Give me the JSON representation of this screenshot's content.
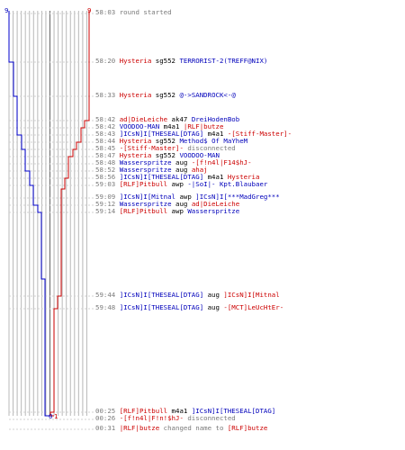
{
  "team_colors": {
    "red": "#cc0000",
    "blue": "#0000cc",
    "grid": "#b8b8b8",
    "axis": "#000000"
  },
  "top_labels": {
    "blue_count": "9",
    "red_count": "9"
  },
  "bottom_labels": {
    "blue_count": "0",
    "red_count": "1"
  },
  "events": [
    {
      "time": "58:03",
      "parts": [
        {
          "text": "round started",
          "c": "sys"
        }
      ]
    },
    {
      "time": "58:20",
      "parts": [
        {
          "text": "Hysteria",
          "c": "red"
        },
        {
          "text": " sg552 ",
          "c": "k"
        },
        {
          "text": "TERRORIST-2(TREFF@NIX)",
          "c": "blue"
        }
      ]
    },
    {
      "time": "58:33",
      "parts": [
        {
          "text": "Hysteria",
          "c": "red"
        },
        {
          "text": " sg552 ",
          "c": "k"
        },
        {
          "text": "@->SANDROCK<-@",
          "c": "blue"
        }
      ]
    },
    {
      "time": "58:42",
      "parts": [
        {
          "text": "ad|DieLeiche",
          "c": "red"
        },
        {
          "text": " ak47 ",
          "c": "k"
        },
        {
          "text": "DreiHodenBob",
          "c": "blue"
        }
      ]
    },
    {
      "time": "58:42",
      "parts": [
        {
          "text": "VOODOO-MAN",
          "c": "blue"
        },
        {
          "text": " m4a1 ",
          "c": "k"
        },
        {
          "text": "|RLF|butze",
          "c": "red"
        }
      ]
    },
    {
      "time": "58:43",
      "parts": [
        {
          "text": "]ICsN]I[THESEAL[DTAG]",
          "c": "blue"
        },
        {
          "text": " m4a1 ",
          "c": "k"
        },
        {
          "text": "-[Stiff-Master]-",
          "c": "red"
        }
      ]
    },
    {
      "time": "58:44",
      "parts": [
        {
          "text": "Hysteria",
          "c": "red"
        },
        {
          "text": " sg552 ",
          "c": "k"
        },
        {
          "text": "Method$ Of MaYheM",
          "c": "blue"
        }
      ]
    },
    {
      "time": "58:45",
      "parts": [
        {
          "text": "-[Stiff-Master]-",
          "c": "red"
        },
        {
          "text": " disconnected",
          "c": "sys"
        }
      ]
    },
    {
      "time": "58:47",
      "parts": [
        {
          "text": "Hysteria",
          "c": "red"
        },
        {
          "text": " sg552 ",
          "c": "k"
        },
        {
          "text": "VOODOO-MAN",
          "c": "blue"
        }
      ]
    },
    {
      "time": "58:48",
      "parts": [
        {
          "text": "Wasserspritze",
          "c": "blue"
        },
        {
          "text": " aug ",
          "c": "k"
        },
        {
          "text": "-[f!n4l|F14$hJ-",
          "c": "red"
        }
      ]
    },
    {
      "time": "58:52",
      "parts": [
        {
          "text": "Wasserspritze",
          "c": "blue"
        },
        {
          "text": " aug ",
          "c": "k"
        },
        {
          "text": "ahaj",
          "c": "red"
        }
      ]
    },
    {
      "time": "58:56",
      "parts": [
        {
          "text": "]ICsN]I[THESEAL[DTAG]",
          "c": "blue"
        },
        {
          "text": " m4a1 ",
          "c": "k"
        },
        {
          "text": "Hysteria",
          "c": "red"
        }
      ]
    },
    {
      "time": "59:03",
      "parts": [
        {
          "text": "[RLF]Pitbull",
          "c": "red"
        },
        {
          "text": " awp ",
          "c": "k"
        },
        {
          "text": "-|SoI|- Kpt.Blaubaer",
          "c": "blue"
        }
      ]
    },
    {
      "time": "59:09",
      "parts": [
        {
          "text": "]ICsN]I[Mitnal",
          "c": "blue"
        },
        {
          "text": " awp ",
          "c": "k"
        },
        {
          "text": "]ICsN]I[***MadGreg***",
          "c": "blue"
        }
      ]
    },
    {
      "time": "59:12",
      "parts": [
        {
          "text": "Wasserspritze",
          "c": "blue"
        },
        {
          "text": " aug ",
          "c": "k"
        },
        {
          "text": "ad|DieLeiche",
          "c": "red"
        }
      ]
    },
    {
      "time": "59:14",
      "parts": [
        {
          "text": "[RLF]Pitbull",
          "c": "red"
        },
        {
          "text": " awp ",
          "c": "k"
        },
        {
          "text": "Wasserspritze",
          "c": "blue"
        }
      ]
    },
    {
      "time": "59:44",
      "parts": [
        {
          "text": "]ICsN]I[THESEAL[DTAG]",
          "c": "blue"
        },
        {
          "text": " aug ",
          "c": "k"
        },
        {
          "text": "]ICsN]I[Mitnal",
          "c": "red"
        }
      ]
    },
    {
      "time": "59:48",
      "parts": [
        {
          "text": "]ICsN]I[THESEAL[DTAG]",
          "c": "blue"
        },
        {
          "text": " aug ",
          "c": "k"
        },
        {
          "text": "-[MCT]LeUcHtEr-",
          "c": "red"
        }
      ]
    },
    {
      "time": "00:25",
      "parts": [
        {
          "text": "[RLF]Pitbull",
          "c": "red"
        },
        {
          "text": " m4a1 ",
          "c": "k"
        },
        {
          "text": "]ICsN]I[THESEAL[DTAG]",
          "c": "blue"
        }
      ]
    },
    {
      "time": "00:26",
      "parts": [
        {
          "text": "-[f!n4l|F!n!$hJ-",
          "c": "red"
        },
        {
          "text": " disconnected",
          "c": "sys"
        }
      ]
    },
    {
      "time": "00:31",
      "parts": [
        {
          "text": "|RLF|butze",
          "c": "red"
        },
        {
          "text": " changed name to ",
          "c": "sys"
        },
        {
          "text": "[RLF]butze",
          "c": "red"
        }
      ]
    }
  ]
}
